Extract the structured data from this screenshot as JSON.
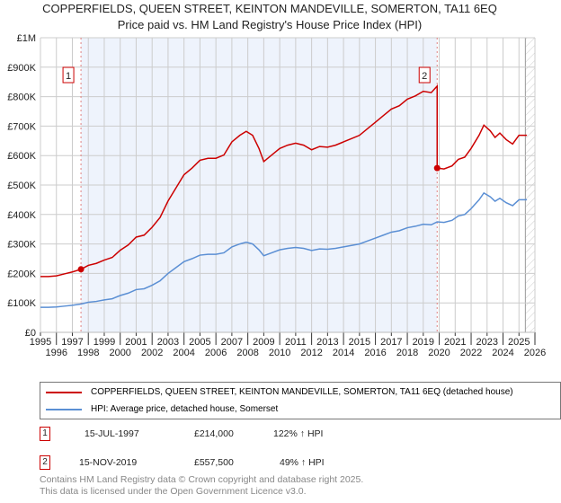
{
  "title": "COPPERFIELDS, QUEEN STREET, KEINTON MANDEVILLE, SOMERTON, TA11 6EQ",
  "subtitle": "Price paid vs. HM Land Registry's House Price Index (HPI)",
  "colors": {
    "property": "#cc0000",
    "hpi": "#5b8fd4",
    "shade": "#eef3fc"
  },
  "chart_data": {
    "type": "line",
    "title": "Price paid vs. HM Land Registry's House Price Index (HPI)",
    "ylim": [
      0,
      1000000
    ],
    "xlim": [
      1995,
      2026
    ],
    "y_ticks": [
      "£0",
      "£100K",
      "£200K",
      "£300K",
      "£400K",
      "£500K",
      "£600K",
      "£700K",
      "£800K",
      "£900K",
      "£1M"
    ],
    "x_ticks": [
      "1995",
      "1996",
      "1997",
      "1998",
      "1999",
      "2000",
      "2001",
      "2002",
      "2003",
      "2004",
      "2005",
      "2006",
      "2007",
      "2008",
      "2009",
      "2010",
      "2011",
      "2012",
      "2013",
      "2014",
      "2015",
      "2016",
      "2017",
      "2018",
      "2019",
      "2020",
      "2021",
      "2022",
      "2023",
      "2024",
      "2025",
      "2026"
    ],
    "grid": true,
    "series": [
      {
        "name": "HPI: Average price, detached house, Somerset",
        "x": [
          1995,
          1995.5,
          1996,
          1996.5,
          1997,
          1997.54,
          1998,
          1998.5,
          1999,
          1999.5,
          2000,
          2000.5,
          2001,
          2001.5,
          2002,
          2002.5,
          2003,
          2003.5,
          2004,
          2004.5,
          2005,
          2005.5,
          2006,
          2006.5,
          2007,
          2007.5,
          2007.9,
          2008.3,
          2008.7,
          2009,
          2009.5,
          2010,
          2010.5,
          2011,
          2011.5,
          2012,
          2012.5,
          2013,
          2013.5,
          2014,
          2014.5,
          2015,
          2015.5,
          2016,
          2016.5,
          2017,
          2017.5,
          2018,
          2018.5,
          2019,
          2019.5,
          2019.87,
          2020.3,
          2020.8,
          2021.2,
          2021.6,
          2022,
          2022.5,
          2022.8,
          2023.2,
          2023.5,
          2023.8,
          2024.2,
          2024.6,
          2025,
          2025.5
        ],
        "values": [
          85000,
          85000,
          86000,
          89000,
          92000,
          96000,
          102000,
          105000,
          110000,
          114000,
          125000,
          133000,
          145000,
          148000,
          160000,
          175000,
          200000,
          220000,
          240000,
          250000,
          262000,
          265000,
          265000,
          270000,
          290000,
          300000,
          306000,
          300000,
          280000,
          260000,
          270000,
          280000,
          285000,
          288000,
          285000,
          278000,
          283000,
          282000,
          285000,
          290000,
          295000,
          300000,
          310000,
          320000,
          330000,
          340000,
          345000,
          355000,
          360000,
          367000,
          365000,
          375000,
          373000,
          380000,
          395000,
          400000,
          420000,
          450000,
          473000,
          460000,
          445000,
          455000,
          440000,
          430000,
          450000,
          450000
        ]
      },
      {
        "name": "COPPERFIELDS, QUEEN STREET, KEINTON MANDEVILLE, SOMERTON, TA11 6EQ (detached house)",
        "note": "HPI-indexed from sale prices"
      }
    ],
    "sales": [
      {
        "label": "1",
        "x": 1997.54,
        "value": 214000
      },
      {
        "label": "2",
        "x": 2019.87,
        "value": 557500
      }
    ],
    "forecast_from": 2025.4
  },
  "legend": {
    "property": "COPPERFIELDS, QUEEN STREET, KEINTON MANDEVILLE, SOMERTON, TA11 6EQ (detached house)",
    "hpi": "HPI: Average price, detached house, Somerset"
  },
  "table": [
    {
      "num": "1",
      "date": "15-JUL-1997",
      "price": "£214,000",
      "delta": "122% ↑ HPI"
    },
    {
      "num": "2",
      "date": "15-NOV-2019",
      "price": "£557,500",
      "delta": "49% ↑ HPI"
    }
  ],
  "footer": {
    "line1": "Contains HM Land Registry data © Crown copyright and database right 2025.",
    "line2": "This data is licensed under the Open Government Licence v3.0."
  }
}
